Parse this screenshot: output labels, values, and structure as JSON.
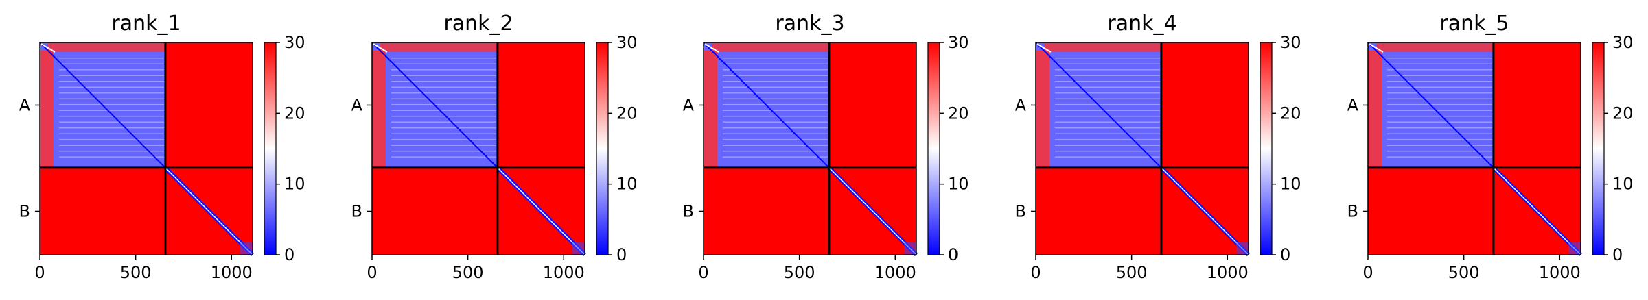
{
  "chart_data": [
    {
      "type": "heatmap",
      "title": "rank_1",
      "matrix_size": 1110,
      "chain_boundary": 655,
      "ytick_labels": [
        "A",
        "B"
      ],
      "xticks": [
        0,
        500,
        1000
      ],
      "colorbar": {
        "ticks": [
          0,
          10,
          20,
          30
        ],
        "range": [
          0,
          30
        ],
        "colormap": [
          "#0000ff",
          "#ffffff",
          "#ff0000"
        ]
      },
      "block_mean_values": {
        "A_A": 6,
        "A_B": 30,
        "B_A": 30,
        "B_B": 30,
        "B_B_diagonal": 1
      }
    },
    {
      "type": "heatmap",
      "title": "rank_2",
      "matrix_size": 1110,
      "chain_boundary": 655,
      "ytick_labels": [
        "A",
        "B"
      ],
      "xticks": [
        0,
        500,
        1000
      ],
      "colorbar": {
        "ticks": [
          0,
          10,
          20,
          30
        ],
        "range": [
          0,
          30
        ],
        "colormap": [
          "#0000ff",
          "#ffffff",
          "#ff0000"
        ]
      },
      "block_mean_values": {
        "A_A": 6,
        "A_B": 30,
        "B_A": 30,
        "B_B": 30,
        "B_B_diagonal": 1
      }
    },
    {
      "type": "heatmap",
      "title": "rank_3",
      "matrix_size": 1110,
      "chain_boundary": 655,
      "ytick_labels": [
        "A",
        "B"
      ],
      "xticks": [
        0,
        500,
        1000
      ],
      "colorbar": {
        "ticks": [
          0,
          10,
          20,
          30
        ],
        "range": [
          0,
          30
        ],
        "colormap": [
          "#0000ff",
          "#ffffff",
          "#ff0000"
        ]
      },
      "block_mean_values": {
        "A_A": 6,
        "A_B": 30,
        "B_A": 30,
        "B_B": 30,
        "B_B_diagonal": 1
      }
    },
    {
      "type": "heatmap",
      "title": "rank_4",
      "matrix_size": 1110,
      "chain_boundary": 655,
      "ytick_labels": [
        "A",
        "B"
      ],
      "xticks": [
        0,
        500,
        1000
      ],
      "colorbar": {
        "ticks": [
          0,
          10,
          20,
          30
        ],
        "range": [
          0,
          30
        ],
        "colormap": [
          "#0000ff",
          "#ffffff",
          "#ff0000"
        ]
      },
      "block_mean_values": {
        "A_A": 6,
        "A_B": 30,
        "B_A": 30,
        "B_B": 30,
        "B_B_diagonal": 1
      }
    },
    {
      "type": "heatmap",
      "title": "rank_5",
      "matrix_size": 1110,
      "chain_boundary": 655,
      "ytick_labels": [
        "A",
        "B"
      ],
      "xticks": [
        0,
        500,
        1000
      ],
      "colorbar": {
        "ticks": [
          0,
          10,
          20,
          30
        ],
        "range": [
          0,
          30
        ],
        "colormap": [
          "#0000ff",
          "#ffffff",
          "#ff0000"
        ]
      },
      "block_mean_values": {
        "A_A": 6,
        "A_B": 30,
        "B_A": 30,
        "B_B": 30,
        "B_B_diagonal": 1
      }
    }
  ]
}
